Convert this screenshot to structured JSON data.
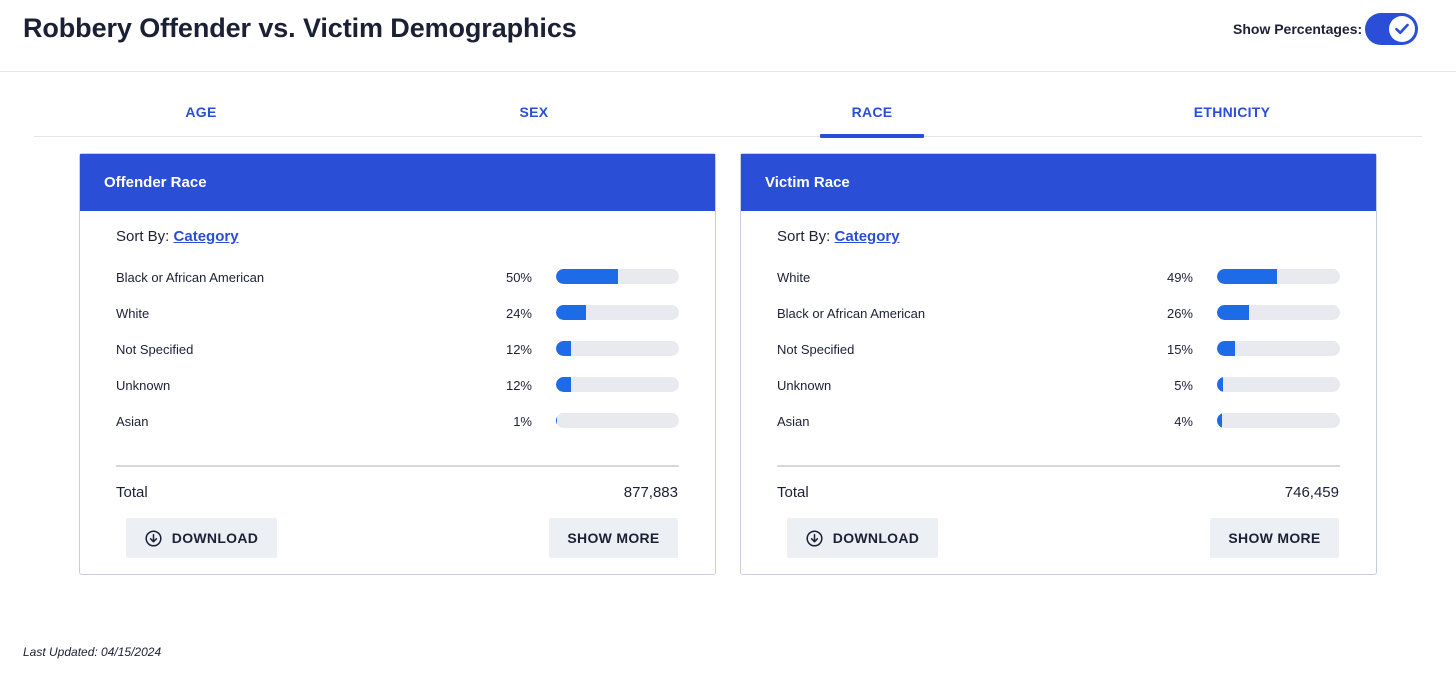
{
  "page": {
    "title": "Robbery Offender vs. Victim Demographics",
    "toggle_label": "Show Percentages:",
    "toggle_on": true,
    "last_updated": "Last Updated: 04/15/2024"
  },
  "tabs": [
    {
      "label": "AGE",
      "active": false
    },
    {
      "label": "SEX",
      "active": false
    },
    {
      "label": "RACE",
      "active": true
    },
    {
      "label": "ETHNICITY",
      "active": false
    }
  ],
  "colors": {
    "accent": "#2a4fd6",
    "bar_fill": "#1e6be8",
    "bar_track": "#e8eaef",
    "button_bg": "#eceff4"
  },
  "cards": [
    {
      "title": "Offender Race",
      "sort_prefix": "Sort By:",
      "sort_value": "Category",
      "rows": [
        {
          "label": "Black or African American",
          "pct_text": "50%",
          "value": 0.5
        },
        {
          "label": "White",
          "pct_text": "24%",
          "value": 0.24
        },
        {
          "label": "Not Specified",
          "pct_text": "12%",
          "value": 0.12
        },
        {
          "label": "Unknown",
          "pct_text": "12%",
          "value": 0.12
        },
        {
          "label": "Asian",
          "pct_text": "1%",
          "value": 0.01
        }
      ],
      "total_label": "Total",
      "total_value": "877,883",
      "download_label": "DOWNLOAD",
      "show_more_label": "SHOW MORE"
    },
    {
      "title": "Victim Race",
      "sort_prefix": "Sort By:",
      "sort_value": "Category",
      "rows": [
        {
          "label": "White",
          "pct_text": "49%",
          "value": 0.49
        },
        {
          "label": "Black or African American",
          "pct_text": "26%",
          "value": 0.26
        },
        {
          "label": "Not Specified",
          "pct_text": "15%",
          "value": 0.15
        },
        {
          "label": "Unknown",
          "pct_text": "5%",
          "value": 0.05
        },
        {
          "label": "Asian",
          "pct_text": "4%",
          "value": 0.04
        }
      ],
      "total_label": "Total",
      "total_value": "746,459",
      "download_label": "DOWNLOAD",
      "show_more_label": "SHOW MORE"
    }
  ]
}
